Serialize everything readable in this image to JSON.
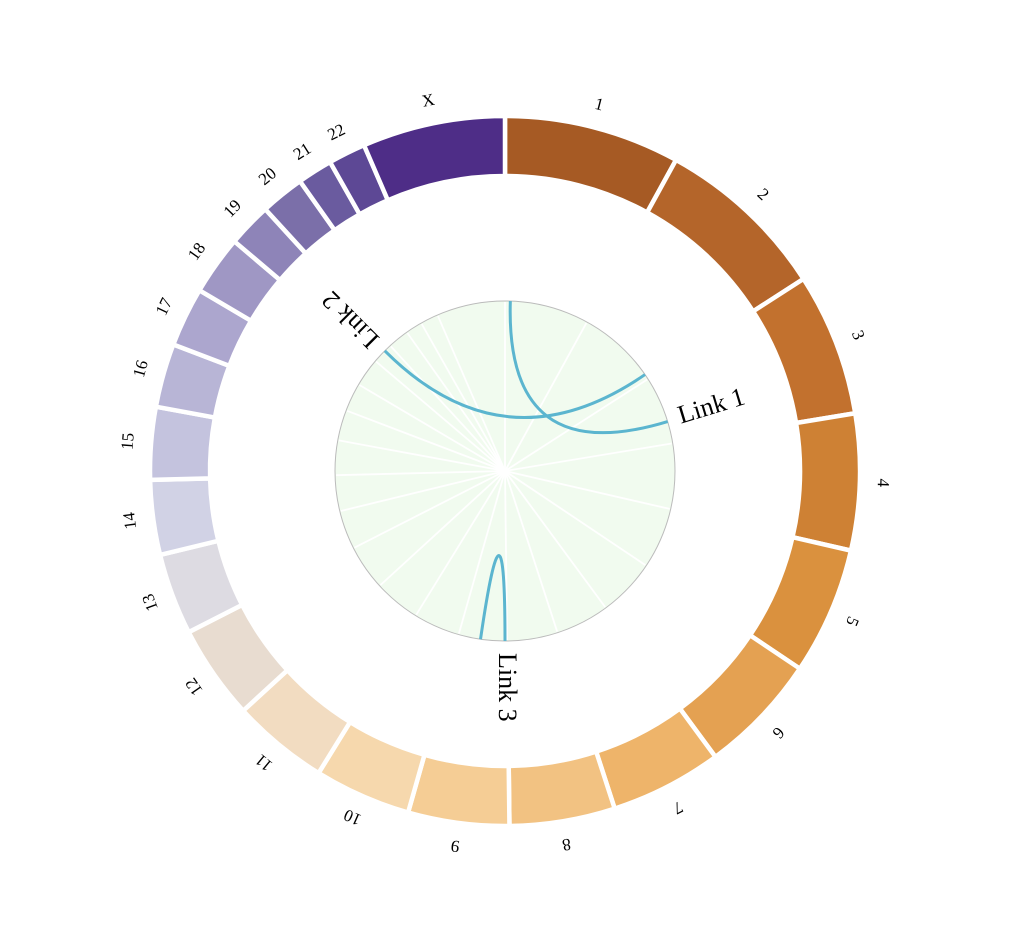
{
  "chromosomes": [
    {
      "label": "1",
      "start": 0.0,
      "end": 0.08,
      "color": "#A65A24"
    },
    {
      "label": "2",
      "start": 0.08,
      "end": 0.159,
      "color": "#B4652A"
    },
    {
      "label": "3",
      "start": 0.159,
      "end": 0.224,
      "color": "#C2712E"
    },
    {
      "label": "4",
      "start": 0.224,
      "end": 0.286,
      "color": "#CE8134"
    },
    {
      "label": "5",
      "start": 0.286,
      "end": 0.344,
      "color": "#DA913E"
    },
    {
      "label": "6",
      "start": 0.344,
      "end": 0.399,
      "color": "#E4A152"
    },
    {
      "label": "7",
      "start": 0.399,
      "end": 0.45,
      "color": "#EEB46A"
    },
    {
      "label": "8",
      "start": 0.45,
      "end": 0.498,
      "color": "#F2C282"
    },
    {
      "label": "9",
      "start": 0.498,
      "end": 0.544,
      "color": "#F5CD95"
    },
    {
      "label": "10",
      "start": 0.544,
      "end": 0.588,
      "color": "#F6D8AD"
    },
    {
      "label": "11",
      "start": 0.588,
      "end": 0.632,
      "color": "#F2DCC1"
    },
    {
      "label": "12",
      "start": 0.632,
      "end": 0.675,
      "color": "#E8DCD0"
    },
    {
      "label": "13",
      "start": 0.675,
      "end": 0.712,
      "color": "#DDDBE2"
    },
    {
      "label": "14",
      "start": 0.712,
      "end": 0.746,
      "color": "#D1D2E5"
    },
    {
      "label": "15",
      "start": 0.746,
      "end": 0.779,
      "color": "#C4C3DE"
    },
    {
      "label": "16",
      "start": 0.779,
      "end": 0.808,
      "color": "#B8B5D6"
    },
    {
      "label": "17",
      "start": 0.808,
      "end": 0.835,
      "color": "#ACA6CE"
    },
    {
      "label": "18",
      "start": 0.835,
      "end": 0.862,
      "color": "#9F97C4"
    },
    {
      "label": "19",
      "start": 0.862,
      "end": 0.882,
      "color": "#8E84B8"
    },
    {
      "label": "20",
      "start": 0.882,
      "end": 0.902,
      "color": "#7B6FA9"
    },
    {
      "label": "21",
      "start": 0.902,
      "end": 0.918,
      "color": "#6A5B9F"
    },
    {
      "label": "22",
      "start": 0.918,
      "end": 0.935,
      "color": "#5D4895"
    },
    {
      "label": "X",
      "start": 0.935,
      "end": 1.0,
      "color": "#4E2D87"
    }
  ],
  "links": [
    {
      "label": "Link 1",
      "from": 0.005,
      "to": 0.203,
      "color": "#5BB5CF",
      "label_at": "to"
    },
    {
      "label": "Link 2",
      "from": 0.154,
      "to": 0.875,
      "color": "#5BB5CF",
      "label_at": "to"
    },
    {
      "label": "Link 3",
      "from": 0.5,
      "to": 0.523,
      "color": "#5BB5CF",
      "label_at": "from"
    }
  ],
  "colors": {
    "inner_disk": "#F1FBEF",
    "inner_disk_border": "#BBBBBB",
    "inner_spokes": "#FFFFFF",
    "separator": "#FFFFFF"
  }
}
